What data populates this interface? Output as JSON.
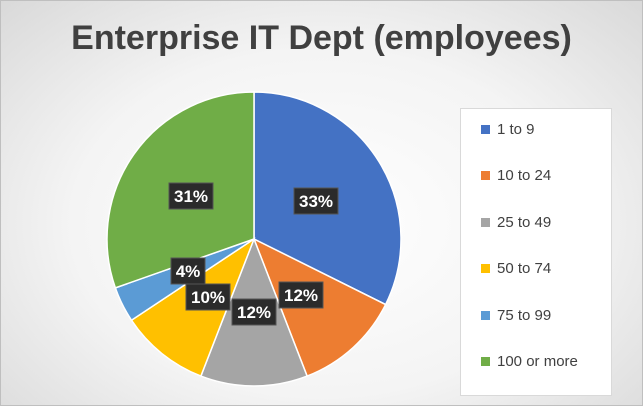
{
  "chart_data": {
    "type": "pie",
    "title": "Enterprise IT Dept (employees)",
    "categories": [
      "1 to 9",
      "10 to 24",
      "25 to 49",
      "50 to 74",
      "75 to 99",
      "100 or more"
    ],
    "values": [
      33,
      12,
      12,
      10,
      4,
      31
    ],
    "data_labels": [
      "33%",
      "12%",
      "12%",
      "10%",
      "4%",
      "31%"
    ],
    "colors": [
      "#4472C4",
      "#ED7D31",
      "#A5A5A5",
      "#FFC000",
      "#5B9BD5",
      "#70AD47"
    ],
    "legend_position": "right"
  }
}
